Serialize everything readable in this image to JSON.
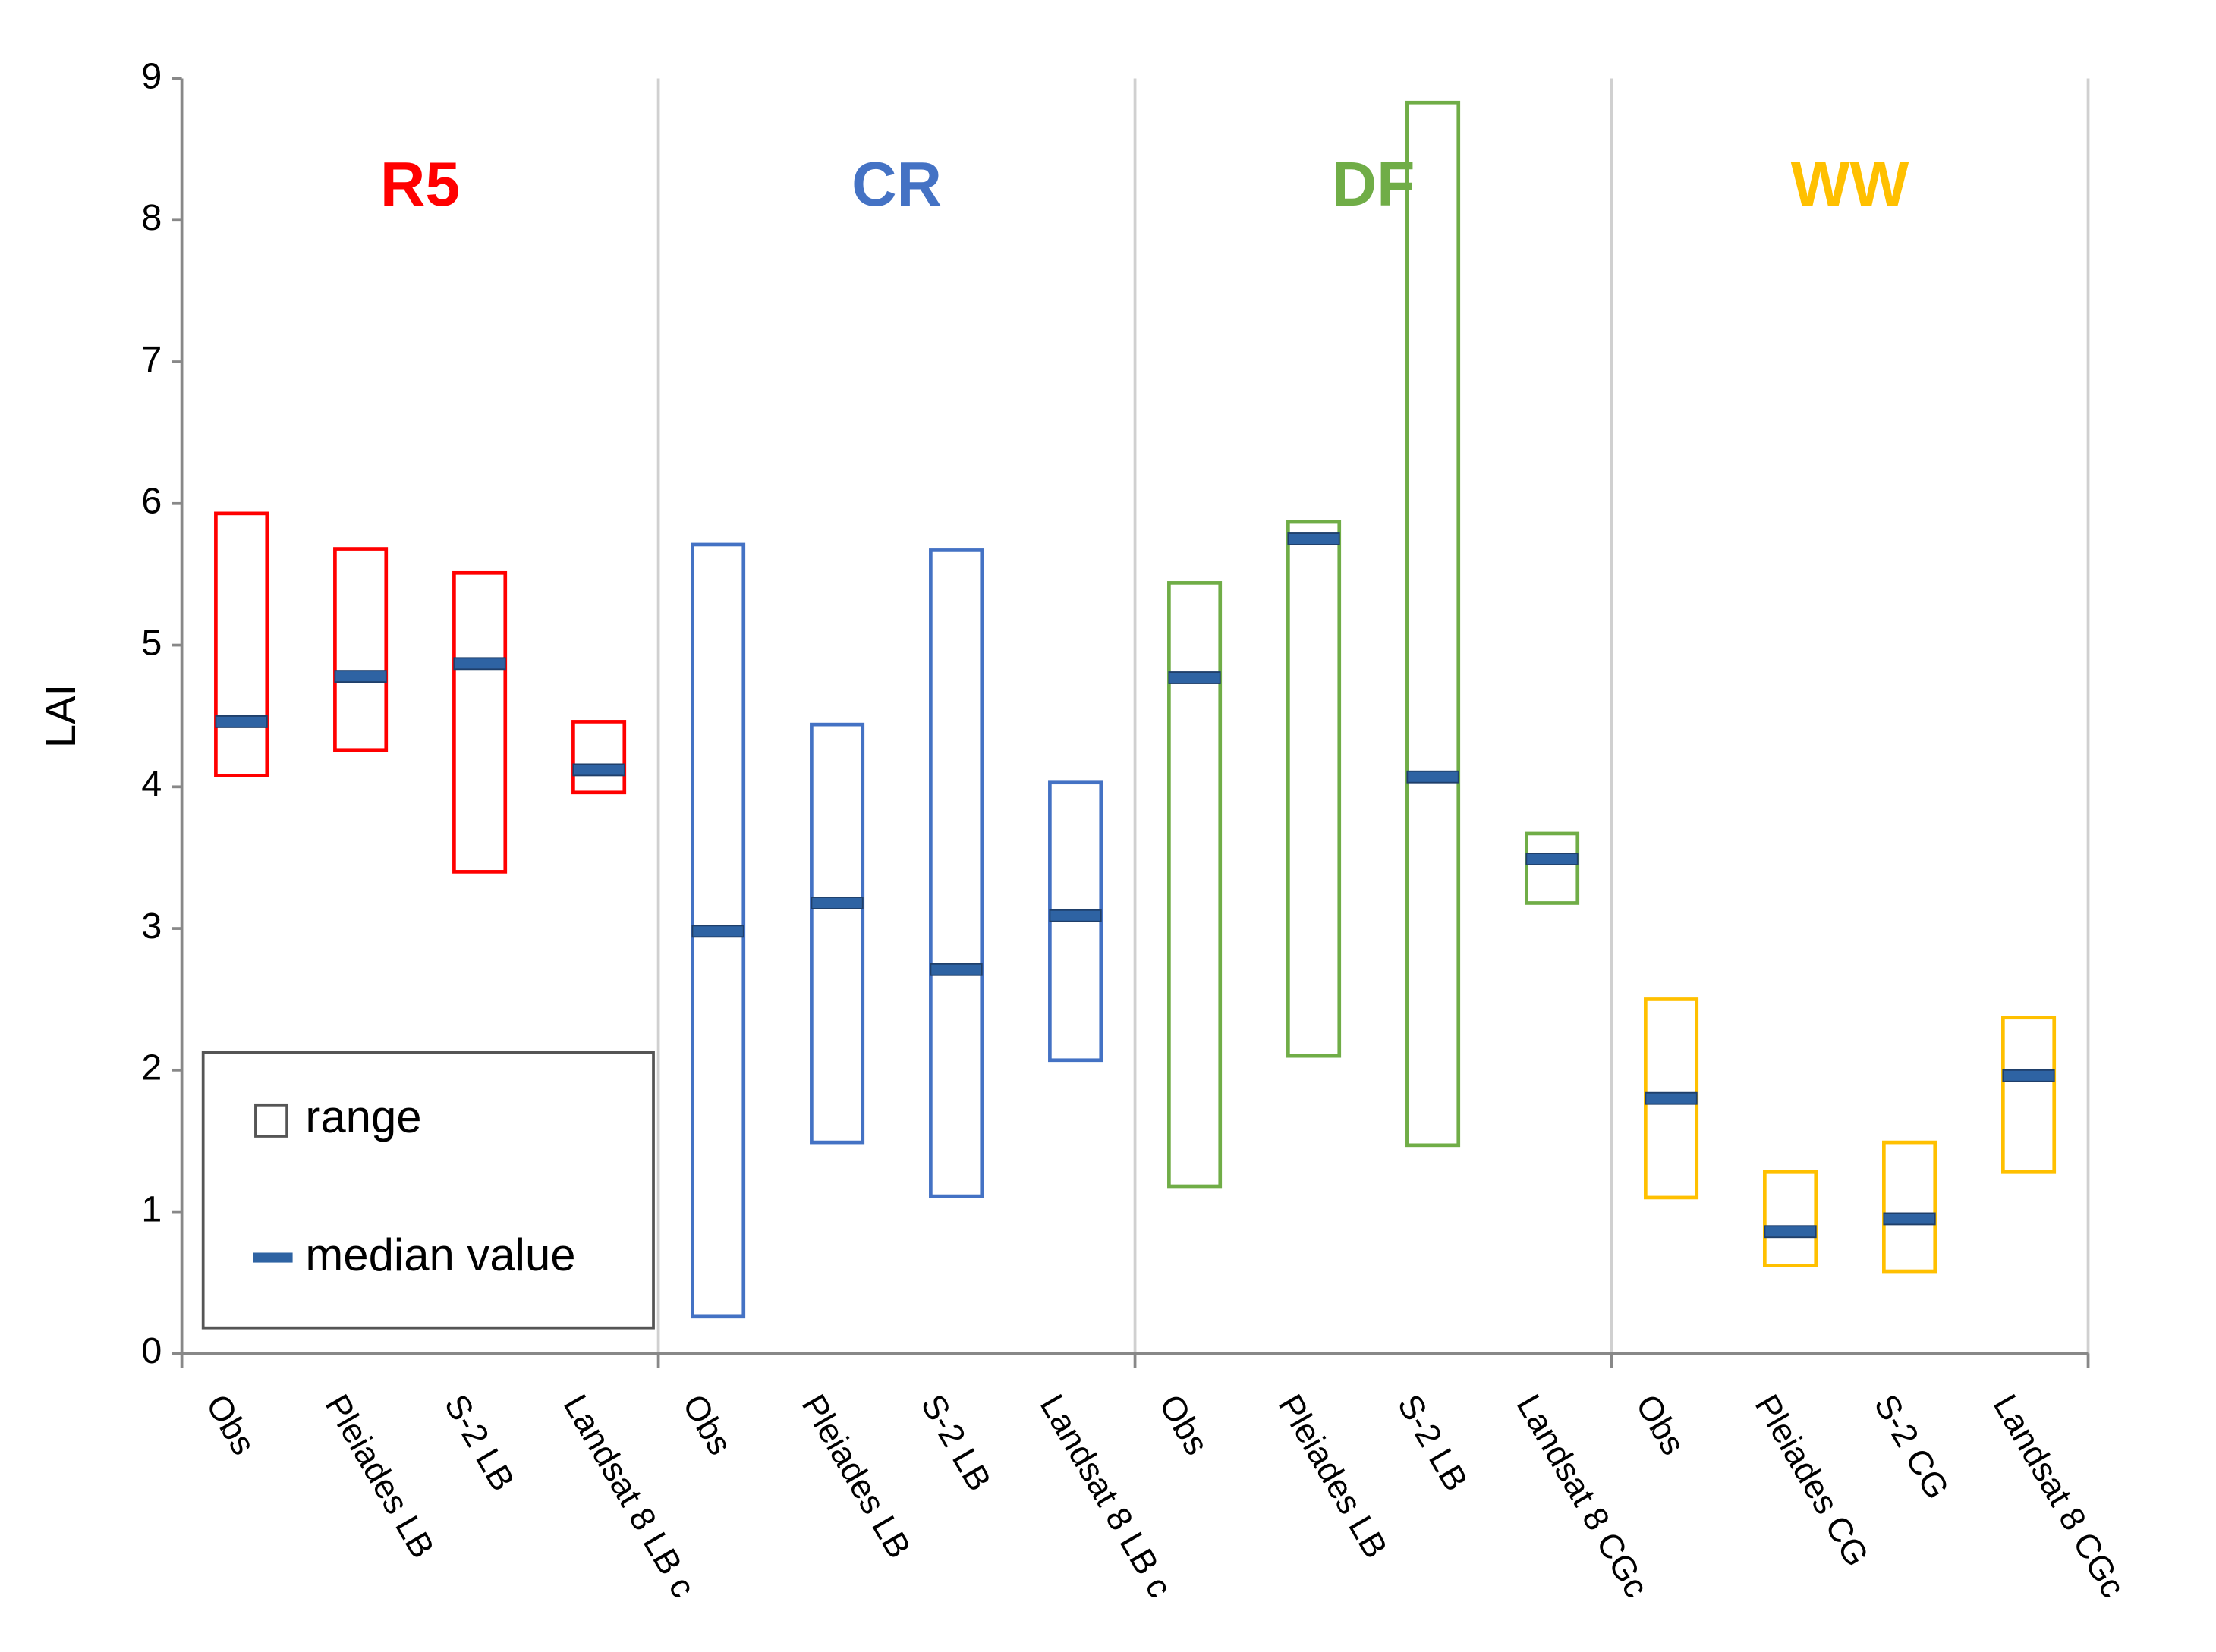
{
  "chart_data": {
    "type": "range",
    "y_label": "LAI",
    "ylim": [
      0,
      9
    ],
    "yticks": [
      0,
      1,
      2,
      3,
      4,
      5,
      6,
      7,
      8,
      9
    ],
    "median_color": "#2e63a3",
    "legend": {
      "range": "range",
      "median": "median value"
    },
    "groups": [
      {
        "name": "R5",
        "color": "#ff0000",
        "categories": [
          "Obs",
          "Pleiades LB",
          "S-2 LB",
          "Landsat 8 LB c"
        ],
        "min": [
          4.08,
          4.26,
          3.4,
          3.96
        ],
        "max": [
          5.93,
          5.68,
          5.51,
          4.46
        ],
        "median": [
          4.46,
          4.78,
          4.87,
          4.12
        ]
      },
      {
        "name": "CR",
        "color": "#4472c4",
        "categories": [
          "Obs",
          "Pleiades LB",
          "S-2 LB",
          "Landsat 8 LB c"
        ],
        "min": [
          0.26,
          1.49,
          1.11,
          2.07
        ],
        "max": [
          5.71,
          4.44,
          5.67,
          4.03
        ],
        "median": [
          2.98,
          3.18,
          2.71,
          3.09
        ]
      },
      {
        "name": "DF",
        "color": "#70ad47",
        "categories": [
          "Obs",
          "Pleiades LB",
          "S-2 LB",
          "Landsat 8 CGc"
        ],
        "min": [
          1.18,
          2.1,
          1.47,
          3.18
        ],
        "max": [
          5.44,
          5.87,
          8.83,
          3.67
        ],
        "median": [
          4.77,
          5.75,
          4.07,
          3.49
        ]
      },
      {
        "name": "WW",
        "color": "#ffc000",
        "categories": [
          "Obs",
          "Pleiades CG",
          "S-2 CG",
          "Landsat 8 CGc"
        ],
        "min": [
          1.1,
          0.62,
          0.58,
          1.28
        ],
        "max": [
          2.5,
          1.28,
          1.49,
          2.37
        ],
        "median": [
          1.8,
          0.86,
          0.95,
          1.96
        ]
      }
    ]
  }
}
